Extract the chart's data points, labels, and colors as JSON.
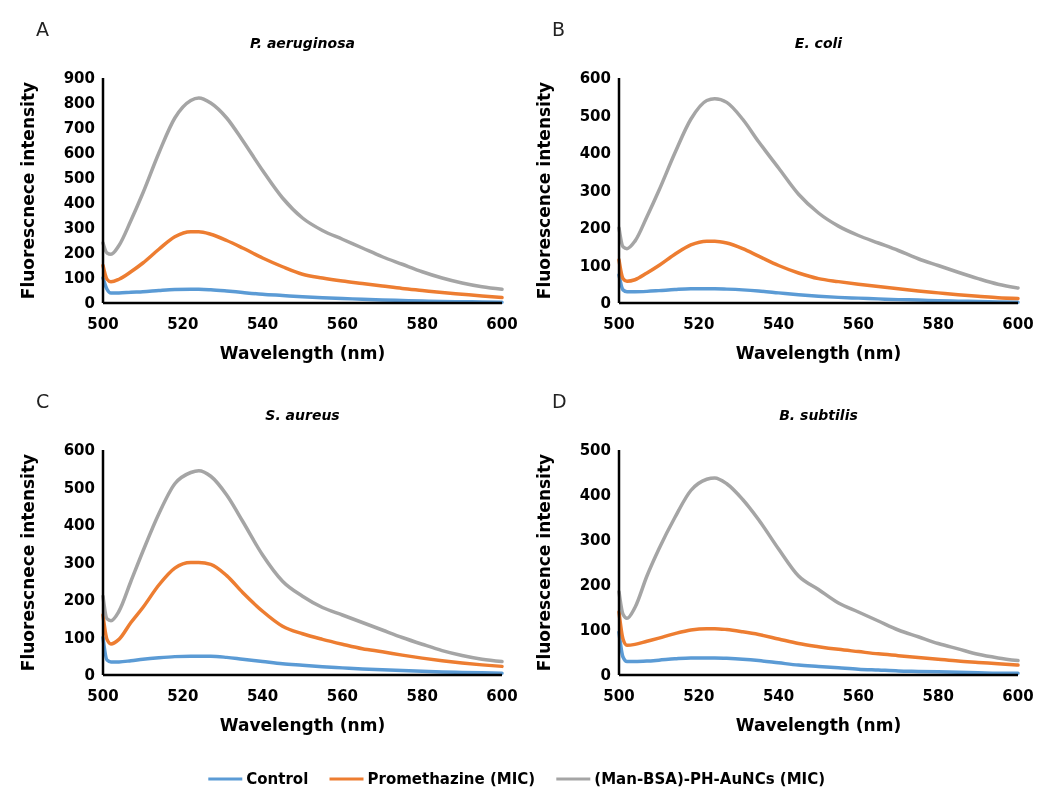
{
  "chart_data": [
    {
      "type": "line",
      "title": "P. aeruginosa",
      "xlabel": "Wavelength (nm)",
      "ylabel": "Fluorescnece intensity",
      "annotations": [
        "A"
      ],
      "legend": "bottom",
      "grid": false,
      "marker": "none",
      "line_style": "solid",
      "x": [
        500,
        501,
        502,
        504,
        507,
        510,
        514,
        518,
        522,
        524,
        527,
        531,
        535,
        540,
        545,
        550,
        555,
        560,
        565,
        570,
        575,
        580,
        585,
        590,
        595,
        600
      ],
      "xlim": [
        500,
        600
      ],
      "xticks": [
        500,
        520,
        540,
        560,
        580,
        600
      ],
      "ylim": [
        0,
        900
      ],
      "yticks": [
        0,
        100,
        200,
        300,
        400,
        500,
        600,
        700,
        800,
        900
      ],
      "series": [
        {
          "name": "Control",
          "color": "#5b9bd5",
          "values": [
            100,
            55,
            40,
            40,
            43,
            45,
            50,
            54,
            55,
            55,
            53,
            48,
            42,
            35,
            30,
            25,
            21,
            18,
            15,
            12,
            10,
            8,
            6,
            5,
            4,
            3
          ]
        },
        {
          "name": "Promethazine (MIC)",
          "color": "#ed7d31",
          "values": [
            150,
            95,
            85,
            95,
            125,
            160,
            215,
            265,
            285,
            285,
            275,
            250,
            220,
            180,
            145,
            115,
            100,
            88,
            78,
            68,
            58,
            50,
            42,
            35,
            28,
            22
          ]
        },
        {
          "name": "(Man-BSA)-PH-AuNCs (MIC)",
          "color": "#a5a5a5",
          "values": [
            240,
            200,
            195,
            230,
            330,
            440,
            600,
            740,
            810,
            820,
            800,
            740,
            650,
            530,
            420,
            340,
            290,
            255,
            220,
            185,
            155,
            125,
            100,
            80,
            65,
            55
          ]
        }
      ]
    },
    {
      "type": "line",
      "title": "E. coli",
      "xlabel": "Wavelength (nm)",
      "ylabel": "Fluorescence intensity",
      "annotations": [
        "B"
      ],
      "grid": false,
      "marker": "none",
      "line_style": "solid",
      "x": [
        500,
        501,
        502,
        504,
        507,
        510,
        514,
        518,
        522,
        524,
        527,
        531,
        535,
        540,
        545,
        550,
        555,
        560,
        565,
        570,
        575,
        580,
        585,
        590,
        595,
        600
      ],
      "xlim": [
        500,
        600
      ],
      "xticks": [
        500,
        520,
        540,
        560,
        580,
        600
      ],
      "ylim": [
        0,
        600
      ],
      "yticks": [
        0,
        100,
        200,
        300,
        400,
        500,
        600
      ],
      "series": [
        {
          "color": "#5b9bd5",
          "values": [
            75,
            35,
            30,
            30,
            31,
            33,
            36,
            38,
            38,
            38,
            37,
            35,
            32,
            27,
            22,
            18,
            15,
            13,
            11,
            9,
            8,
            6,
            5,
            4,
            3,
            2
          ]
        },
        {
          "color": "#ed7d31",
          "values": [
            115,
            65,
            58,
            62,
            80,
            100,
            130,
            155,
            165,
            165,
            160,
            145,
            125,
            100,
            80,
            65,
            57,
            50,
            44,
            38,
            32,
            27,
            22,
            18,
            14,
            12
          ]
        },
        {
          "color": "#a5a5a5",
          "values": [
            200,
            150,
            145,
            165,
            230,
            300,
            400,
            490,
            540,
            545,
            535,
            490,
            430,
            360,
            290,
            240,
            205,
            180,
            160,
            140,
            118,
            100,
            82,
            65,
            50,
            40
          ]
        }
      ]
    },
    {
      "type": "line",
      "title": "S. aureus",
      "xlabel": "Wavelength (nm)",
      "ylabel": "Fluorescnece intensity",
      "annotations": [
        "C"
      ],
      "grid": false,
      "marker": "none",
      "line_style": "solid",
      "x": [
        500,
        501,
        502,
        504,
        507,
        510,
        514,
        518,
        522,
        524,
        527,
        531,
        535,
        540,
        545,
        550,
        555,
        560,
        565,
        570,
        575,
        580,
        585,
        590,
        595,
        600
      ],
      "xlim": [
        500,
        600
      ],
      "xticks": [
        500,
        520,
        540,
        560,
        580,
        600
      ],
      "ylim": [
        0,
        600
      ],
      "yticks": [
        0,
        100,
        200,
        300,
        400,
        500,
        600
      ],
      "series": [
        {
          "color": "#5b9bd5",
          "values": [
            100,
            40,
            35,
            35,
            38,
            42,
            46,
            49,
            50,
            50,
            50,
            47,
            42,
            36,
            30,
            26,
            22,
            19,
            16,
            14,
            12,
            10,
            8,
            7,
            6,
            5
          ]
        },
        {
          "color": "#ed7d31",
          "values": [
            160,
            95,
            83,
            95,
            140,
            180,
            240,
            285,
            300,
            300,
            295,
            265,
            220,
            170,
            130,
            110,
            95,
            82,
            70,
            62,
            53,
            45,
            38,
            32,
            27,
            23
          ]
        },
        {
          "color": "#a5a5a5",
          "values": [
            210,
            150,
            145,
            170,
            250,
            330,
            430,
            510,
            540,
            545,
            530,
            480,
            410,
            320,
            250,
            210,
            180,
            160,
            140,
            120,
            100,
            82,
            65,
            52,
            42,
            36
          ]
        }
      ]
    },
    {
      "type": "line",
      "title": "B. subtilis",
      "xlabel": "Wavelength (nm)",
      "ylabel": "Fluorescence intensity",
      "annotations": [
        "D"
      ],
      "grid": false,
      "marker": "none",
      "line_style": "solid",
      "x": [
        500,
        501,
        502,
        504,
        507,
        510,
        514,
        518,
        522,
        524,
        527,
        531,
        535,
        540,
        545,
        550,
        555,
        560,
        565,
        570,
        575,
        580,
        585,
        590,
        595,
        600
      ],
      "xlim": [
        500,
        600
      ],
      "xticks": [
        500,
        520,
        540,
        560,
        580,
        600
      ],
      "ylim": [
        0,
        500
      ],
      "yticks": [
        0,
        100,
        200,
        300,
        400,
        500
      ],
      "series": [
        {
          "color": "#5b9bd5",
          "values": [
            95,
            40,
            30,
            30,
            31,
            33,
            36,
            38,
            38,
            38,
            37,
            35,
            32,
            27,
            22,
            19,
            16,
            13,
            11,
            9,
            8,
            7,
            6,
            5,
            4,
            4
          ]
        },
        {
          "color": "#ed7d31",
          "values": [
            140,
            80,
            66,
            68,
            75,
            82,
            92,
            100,
            103,
            103,
            101,
            96,
            90,
            80,
            70,
            63,
            57,
            52,
            47,
            43,
            39,
            35,
            31,
            28,
            25,
            22
          ]
        },
        {
          "color": "#a5a5a5",
          "values": [
            185,
            135,
            126,
            150,
            220,
            280,
            350,
            410,
            435,
            438,
            425,
            390,
            345,
            280,
            220,
            190,
            160,
            140,
            120,
            100,
            85,
            70,
            58,
            46,
            38,
            32
          ]
        }
      ]
    }
  ]
}
